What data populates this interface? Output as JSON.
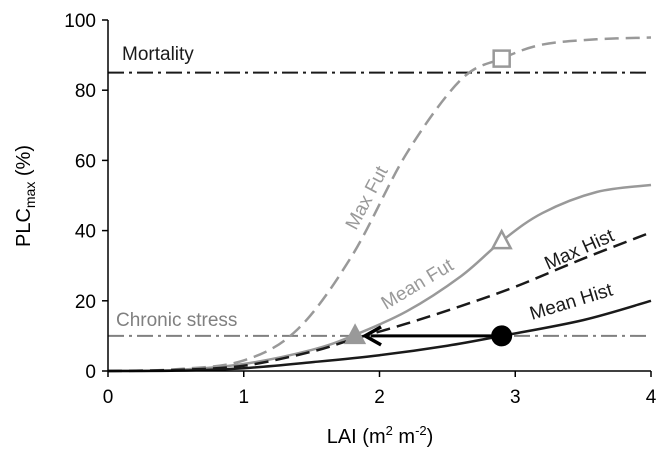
{
  "chart_data": {
    "type": "line",
    "x_axis": {
      "label_main": "LAI (m",
      "label_sup1": "2",
      "label_mid": " m",
      "label_sup2": "-2",
      "label_end": ")",
      "xlim": [
        0,
        4
      ],
      "ticks": [
        "0",
        "1",
        "2",
        "3",
        "4"
      ]
    },
    "y_axis": {
      "label_main": "PLC",
      "label_sub": "max",
      "label_end": " (%)",
      "ylim": [
        0,
        100
      ],
      "ticks": [
        "0",
        "20",
        "40",
        "60",
        "80",
        "100"
      ]
    },
    "grid": false,
    "series": [
      {
        "name": "Max Fut",
        "color": "#999999",
        "dash": "dashed",
        "x": [
          0,
          0.5,
          1.0,
          1.4,
          1.8,
          2.2,
          2.6,
          2.9,
          3.2,
          3.6,
          4.0
        ],
        "y": [
          0,
          0.5,
          3,
          12,
          33,
          62,
          83,
          89,
          93,
          94.5,
          95
        ]
      },
      {
        "name": "Mean Fut",
        "color": "#999999",
        "dash": "solid",
        "x": [
          0,
          0.5,
          1.0,
          1.5,
          1.8,
          2.2,
          2.6,
          2.9,
          3.2,
          3.6,
          4.0
        ],
        "y": [
          0,
          0.3,
          2,
          6,
          10,
          17,
          27,
          37,
          45,
          51,
          53
        ]
      },
      {
        "name": "Max Hist",
        "color": "#1a1a1a",
        "dash": "dashed",
        "x": [
          0,
          0.5,
          1.0,
          1.5,
          1.8,
          2.2,
          2.6,
          3.0,
          3.5,
          4.0
        ],
        "y": [
          0,
          0.3,
          1.5,
          5.5,
          9,
          13.5,
          18.5,
          24,
          32,
          39.5
        ]
      },
      {
        "name": "Mean Hist",
        "color": "#1a1a1a",
        "dash": "solid",
        "x": [
          0,
          0.5,
          1.0,
          1.5,
          2.0,
          2.5,
          2.9,
          3.5,
          4.0
        ],
        "y": [
          0,
          0.1,
          0.8,
          2.5,
          4.5,
          7.2,
          10,
          14.5,
          20
        ]
      }
    ],
    "thresholds": [
      {
        "label": "Mortality",
        "y": 85,
        "color": "#1a1a1a"
      },
      {
        "label": "Chronic stress",
        "y": 10,
        "color": "#808080"
      }
    ],
    "markers": [
      {
        "shape": "square",
        "x": 2.9,
        "y": 89,
        "color": "#999999",
        "filled": false
      },
      {
        "shape": "triangle",
        "x": 2.9,
        "y": 37,
        "color": "#999999",
        "filled": false
      },
      {
        "shape": "triangle",
        "x": 1.82,
        "y": 10,
        "color": "#999999",
        "filled": true
      },
      {
        "shape": "circle",
        "x": 2.9,
        "y": 10,
        "color": "#000000",
        "filled": true
      }
    ],
    "arrow": {
      "from": [
        2.9,
        10
      ],
      "to": [
        1.82,
        10
      ],
      "color": "#000000"
    }
  }
}
